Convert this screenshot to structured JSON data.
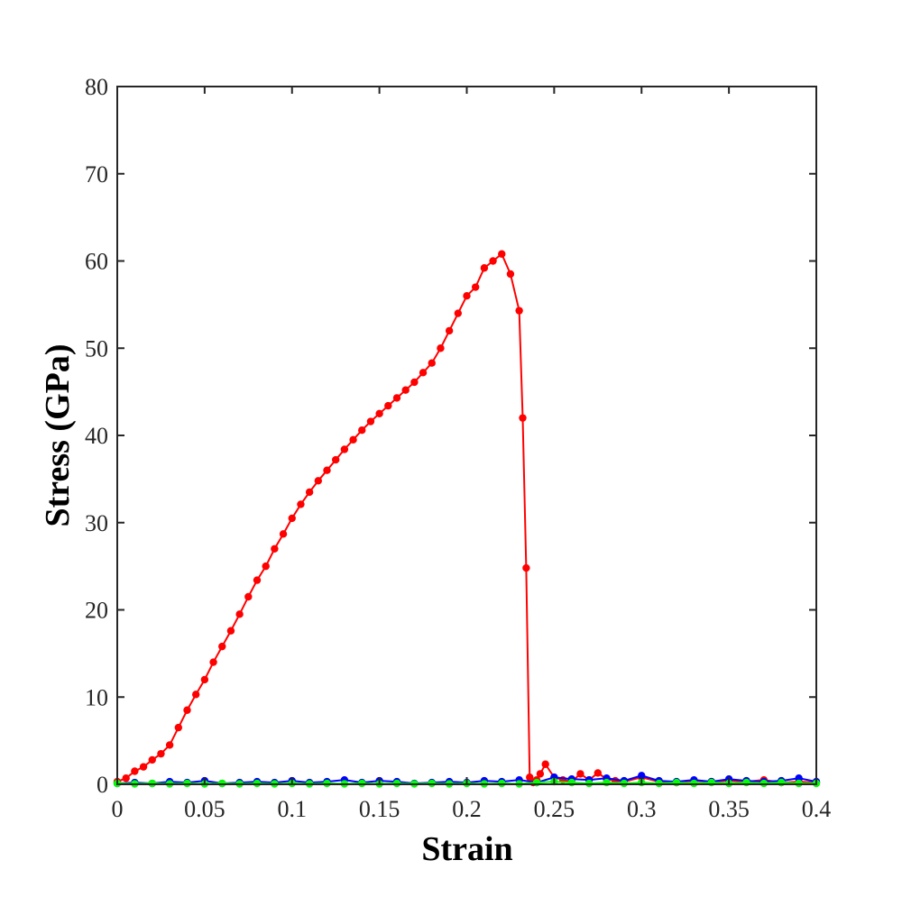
{
  "chart_data": {
    "type": "line",
    "title": "",
    "xlabel": "Strain",
    "ylabel": "Stress (GPa)",
    "xlim": [
      0,
      0.4
    ],
    "ylim": [
      0,
      80
    ],
    "grid": false,
    "legend": "none",
    "x_ticks": [
      0,
      0.05,
      0.1,
      0.15,
      0.2,
      0.25,
      0.3,
      0.35,
      0.4
    ],
    "x_tick_labels": [
      "0",
      "0.05",
      "0.1",
      "0.15",
      "0.2",
      "0.25",
      "0.3",
      "0.35",
      "0.4"
    ],
    "y_ticks": [
      0,
      10,
      20,
      30,
      40,
      50,
      60,
      70,
      80
    ],
    "y_tick_labels": [
      "0",
      "10",
      "20",
      "30",
      "40",
      "50",
      "60",
      "70",
      "80"
    ],
    "series": [
      {
        "color": "#ff0000",
        "x": [
          0,
          0.005,
          0.01,
          0.015,
          0.02,
          0.025,
          0.03,
          0.035,
          0.04,
          0.045,
          0.05,
          0.055,
          0.06,
          0.065,
          0.07,
          0.075,
          0.08,
          0.085,
          0.09,
          0.095,
          0.1,
          0.105,
          0.11,
          0.115,
          0.12,
          0.125,
          0.13,
          0.135,
          0.14,
          0.145,
          0.15,
          0.155,
          0.16,
          0.165,
          0.17,
          0.175,
          0.18,
          0.185,
          0.19,
          0.195,
          0.2,
          0.205,
          0.21,
          0.215,
          0.22,
          0.225,
          0.23,
          0.232,
          0.234,
          0.236,
          0.238,
          0.24,
          0.242,
          0.245,
          0.25,
          0.255,
          0.26,
          0.265,
          0.27,
          0.275,
          0.28,
          0.285,
          0.29,
          0.3,
          0.31,
          0.32,
          0.33,
          0.34,
          0.35,
          0.36,
          0.37,
          0.38,
          0.39,
          0.4
        ],
        "y": [
          0.3,
          0.7,
          1.5,
          2.0,
          2.8,
          3.5,
          4.5,
          6.5,
          8.5,
          10.3,
          12.0,
          14.0,
          15.8,
          17.6,
          19.5,
          21.5,
          23.4,
          25.0,
          27.0,
          28.7,
          30.5,
          32.1,
          33.5,
          34.8,
          36.0,
          37.2,
          38.4,
          39.5,
          40.6,
          41.6,
          42.5,
          43.4,
          44.3,
          45.2,
          46.1,
          47.2,
          48.3,
          50.0,
          52.0,
          54.0,
          56.0,
          57.0,
          59.2,
          60.0,
          60.8,
          58.5,
          54.3,
          42.0,
          24.8,
          0.8,
          0.2,
          0.5,
          1.2,
          2.3,
          0.8,
          0.5,
          0.3,
          1.2,
          0.5,
          1.3,
          0.6,
          0.4,
          0.3,
          0.8,
          0.3,
          0.2,
          0.4,
          0.3,
          0.4,
          0.3,
          0.5,
          0.2,
          0.3,
          0.2
        ]
      },
      {
        "color": "#0000ff",
        "x": [
          0,
          0.01,
          0.02,
          0.03,
          0.04,
          0.05,
          0.06,
          0.07,
          0.08,
          0.09,
          0.1,
          0.11,
          0.12,
          0.13,
          0.14,
          0.15,
          0.16,
          0.17,
          0.18,
          0.19,
          0.2,
          0.21,
          0.22,
          0.23,
          0.24,
          0.25,
          0.26,
          0.27,
          0.28,
          0.29,
          0.3,
          0.31,
          0.32,
          0.33,
          0.34,
          0.35,
          0.36,
          0.37,
          0.38,
          0.39,
          0.4
        ],
        "y": [
          0.1,
          0.2,
          0.1,
          0.3,
          0.2,
          0.4,
          0.1,
          0.2,
          0.3,
          0.2,
          0.4,
          0.2,
          0.3,
          0.5,
          0.2,
          0.4,
          0.3,
          0.1,
          0.2,
          0.3,
          0.2,
          0.4,
          0.3,
          0.5,
          0.2,
          0.8,
          0.6,
          0.5,
          0.7,
          0.4,
          1.0,
          0.4,
          0.3,
          0.5,
          0.3,
          0.6,
          0.4,
          0.3,
          0.4,
          0.7,
          0.3
        ]
      },
      {
        "color": "#00ff00",
        "x": [
          0,
          0.01,
          0.02,
          0.03,
          0.04,
          0.05,
          0.06,
          0.07,
          0.08,
          0.09,
          0.1,
          0.11,
          0.12,
          0.13,
          0.14,
          0.15,
          0.16,
          0.17,
          0.18,
          0.19,
          0.2,
          0.21,
          0.22,
          0.23,
          0.24,
          0.25,
          0.26,
          0.27,
          0.28,
          0.29,
          0.3,
          0.31,
          0.32,
          0.33,
          0.34,
          0.35,
          0.36,
          0.37,
          0.38,
          0.39,
          0.4
        ],
        "y": [
          0.1,
          0.05,
          0.1,
          0.05,
          0.1,
          0.05,
          0.1,
          0.05,
          0.1,
          0.05,
          0.1,
          0.05,
          0.1,
          0.05,
          0.1,
          0.05,
          0.1,
          0.05,
          0.1,
          0.05,
          0.1,
          0.05,
          0.1,
          0.05,
          0.2,
          0.3,
          0.2,
          0.1,
          0.2,
          0.1,
          0.2,
          0.1,
          0.2,
          0.1,
          0.2,
          0.1,
          0.2,
          0.1,
          0.2,
          0.1,
          0.1
        ]
      }
    ]
  }
}
